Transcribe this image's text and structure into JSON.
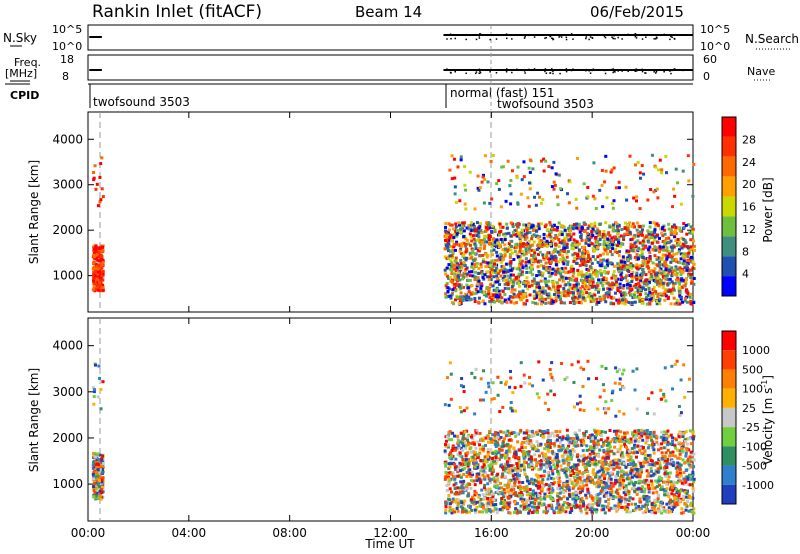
{
  "header": {
    "station": "Rankin Inlet (fitACF)",
    "beam": "Beam 14",
    "date": "06/Feb/2015"
  },
  "aux_panels": {
    "nsky_label": "N.Sky",
    "nsky_scale_top": "10^5",
    "nsky_scale_bottom": "10^0",
    "nsearch_label": "N.Search",
    "nsearch_scale_top": "10^5",
    "nsearch_scale_bottom": "10^0",
    "freq_label_1": "Freq.",
    "freq_label_2": "[MHz]",
    "freq_scale_top": "18",
    "freq_scale_bottom": "8",
    "nave_label": "Nave",
    "nave_scale_top": "60",
    "nave_scale_bottom": "0",
    "cpid_label": "CPID",
    "cpid_entries": [
      "twofsound 3503",
      "normal (fast) 151",
      "twofsound 3503"
    ]
  },
  "colors": {
    "power": [
      "#0000ff",
      "#2050b0",
      "#3f8f7f",
      "#6fbf3f",
      "#c8d800",
      "#ffa000",
      "#ff6800",
      "#ff3000",
      "#ff0000"
    ],
    "velocity": [
      "#1f3fbf",
      "#2f7fcf",
      "#2f8f5f",
      "#6fcf3f",
      "#c8c8c8",
      "#ffb000",
      "#ff8000",
      "#ff4000",
      "#ff0000"
    ],
    "grey_scatter": "#c0c0c0"
  },
  "chart_data": [
    {
      "type": "heatmap",
      "title": "Power",
      "ylabel": "Slant Range [km]",
      "xlabel": "",
      "x_ticks": [
        "00:00",
        "04:00",
        "08:00",
        "12:00",
        "16:00",
        "20:00",
        "00:00"
      ],
      "y_ticks": [
        1000,
        2000,
        3000,
        4000
      ],
      "ylim": [
        200,
        4600
      ],
      "xlim_hours": [
        0,
        24
      ],
      "colorbar_label": "Power [dB]",
      "colorbar_ticks": [
        4,
        8,
        12,
        16,
        20,
        24,
        28
      ],
      "colorbar_range": [
        0,
        32
      ],
      "data_blocks": [
        {
          "t_start": 0.15,
          "t_end": 0.55,
          "r_start": 700,
          "r_end": 1700,
          "level": "high"
        },
        {
          "t_start": 14.1,
          "t_end": 24.0,
          "r_start": 400,
          "r_end": 2200,
          "level": "mixed"
        }
      ]
    },
    {
      "type": "heatmap",
      "title": "Velocity",
      "ylabel": "Slant Range [km]",
      "xlabel": "Time UT",
      "x_ticks": [
        "00:00",
        "04:00",
        "08:00",
        "12:00",
        "16:00",
        "20:00",
        "00:00"
      ],
      "y_ticks": [
        1000,
        2000,
        3000,
        4000
      ],
      "ylim": [
        200,
        4600
      ],
      "xlim_hours": [
        0,
        24
      ],
      "colorbar_label": "Velocity [m s^-1]",
      "colorbar_ticks": [
        1000,
        500,
        100,
        25,
        -25,
        -100,
        -500,
        -1000
      ],
      "data_blocks": [
        {
          "t_start": 0.15,
          "t_end": 0.55,
          "r_start": 700,
          "r_end": 1700,
          "level": "mixed"
        },
        {
          "t_start": 14.1,
          "t_end": 24.0,
          "r_start": 400,
          "r_end": 2200,
          "level": "mixed"
        }
      ]
    }
  ],
  "labels": {
    "time_axis": "Time UT",
    "slant_range": "Slant Range [km]",
    "power_cb": "Power [dB]",
    "velocity_cb": "Velocity [m s",
    "velocity_cb_sup": "-1",
    "velocity_cb_end": "]"
  }
}
